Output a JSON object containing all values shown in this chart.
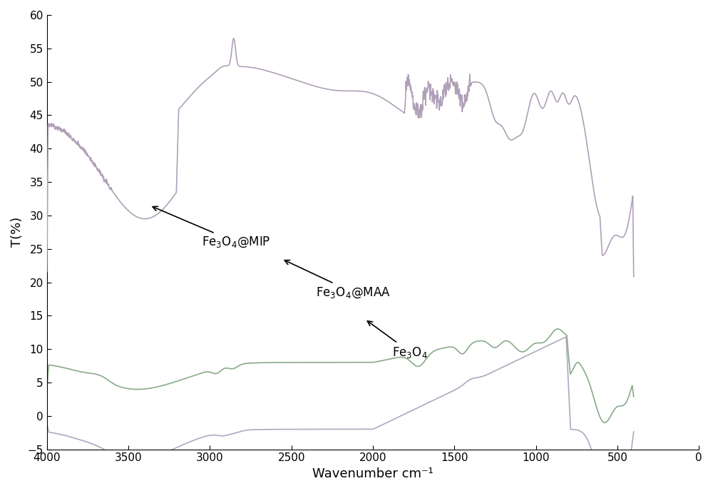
{
  "xlabel": "Wavenumber cm⁻¹",
  "ylabel": "T(%)",
  "xlim": [
    4000,
    0
  ],
  "ylim": [
    -5,
    60
  ],
  "yticks": [
    -5,
    0,
    5,
    10,
    15,
    20,
    25,
    30,
    35,
    40,
    45,
    50,
    55,
    60
  ],
  "xticks": [
    4000,
    3500,
    3000,
    2500,
    2000,
    1500,
    1000,
    500,
    0
  ],
  "background_color": "#ffffff",
  "color_mip": "#b0a0b8",
  "color_maa": "#8aaa8a",
  "color_fe3o4": "#b0a8c0",
  "font_size": 12,
  "axis_font_size": 13,
  "lw": 1.2
}
